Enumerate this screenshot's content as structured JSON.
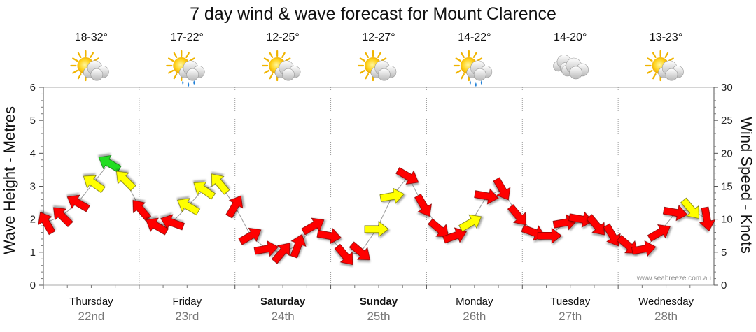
{
  "chart_data": {
    "type": "line",
    "title": "7 day wind & wave forecast for Mount Clarence",
    "ylabel_left": "Wave Height - Metres",
    "ylabel_right": "Wind Speed - Knots",
    "ylim_left": [
      0,
      6
    ],
    "ylim_right": [
      0,
      30
    ],
    "yticks_left": [
      "0",
      "1",
      "2",
      "3",
      "4",
      "5",
      "6"
    ],
    "yticks_right": [
      "0",
      "5",
      "10",
      "15",
      "20",
      "25",
      "30"
    ],
    "grid": true,
    "credit": "www.seabreeze.com.au",
    "days": [
      {
        "name": "Thursday",
        "date": "22nd",
        "temp": "18-32°",
        "weather": "partly-cloudy-icon",
        "bold": false
      },
      {
        "name": "Friday",
        "date": "23rd",
        "temp": "17-22°",
        "weather": "shower-icon",
        "bold": false
      },
      {
        "name": "Saturday",
        "date": "24th",
        "temp": "12-25°",
        "weather": "partly-cloudy-icon",
        "bold": true
      },
      {
        "name": "Sunday",
        "date": "25th",
        "temp": "12-27°",
        "weather": "partly-cloudy-icon",
        "bold": true
      },
      {
        "name": "Monday",
        "date": "26th",
        "temp": "14-22°",
        "weather": "shower-icon",
        "bold": false
      },
      {
        "name": "Tuesday",
        "date": "27th",
        "temp": "14-20°",
        "weather": "cloudy-icon",
        "bold": false
      },
      {
        "name": "Wednesday",
        "date": "28th",
        "temp": "13-23°",
        "weather": "partly-cloudy-icon",
        "bold": false
      }
    ],
    "wave_height_m": [
      1.9,
      2.1,
      2.5,
      3.1,
      3.7,
      3.2,
      2.3,
      1.8,
      1.9,
      2.4,
      2.9,
      3.1,
      2.4,
      1.5,
      1.1,
      1.0,
      1.2,
      1.8,
      1.5,
      0.9,
      1.0,
      1.7,
      2.7,
      3.3,
      2.4,
      1.7,
      1.5,
      1.9,
      2.7,
      2.9,
      2.1,
      1.6,
      1.5,
      1.9,
      2.0,
      1.8,
      1.5,
      1.2,
      1.1,
      1.6,
      2.2,
      2.3,
      2.0
    ],
    "wind_kn": [
      11,
      9,
      12,
      17,
      19,
      15,
      9,
      9,
      10,
      14,
      16,
      13,
      7,
      5,
      4,
      6,
      9,
      5,
      4,
      5,
      8,
      14,
      16,
      10,
      7,
      6,
      11,
      14,
      10,
      6,
      6,
      7,
      9,
      10,
      9,
      6,
      5,
      5,
      6,
      9,
      12,
      13,
      9
    ],
    "wind_dir_deg": [
      330,
      315,
      300,
      305,
      300,
      315,
      320,
      300,
      290,
      300,
      305,
      320,
      30,
      60,
      80,
      40,
      20,
      60,
      100,
      140,
      130,
      90,
      80,
      120,
      150,
      130,
      70,
      60,
      100,
      150,
      140,
      110,
      90,
      80,
      100,
      140,
      150,
      130,
      80,
      60,
      100,
      140,
      170
    ],
    "wind_color_scale": [
      {
        "max": 12,
        "color": "#ff0000"
      },
      {
        "max": 18,
        "color": "#ffff00"
      },
      {
        "max": 99,
        "color": "#22dd22"
      }
    ]
  }
}
